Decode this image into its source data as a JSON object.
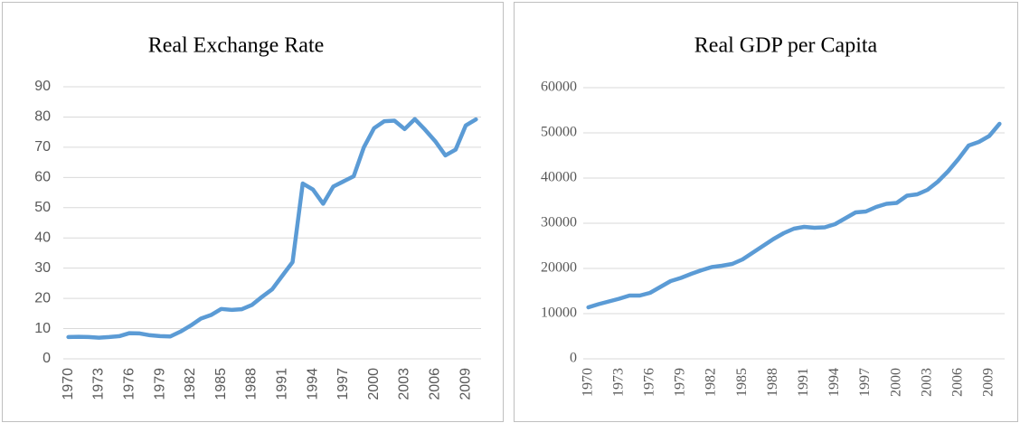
{
  "chart_data": [
    {
      "type": "line",
      "title": "Real Exchange Rate",
      "categories": [
        "1970",
        null,
        null,
        "1973",
        null,
        null,
        "1976",
        null,
        null,
        "1979",
        null,
        null,
        "1982",
        null,
        null,
        "1985",
        null,
        null,
        "1988",
        null,
        null,
        "1991",
        null,
        null,
        "1994",
        null,
        null,
        "1997",
        null,
        null,
        "2000",
        null,
        null,
        "2003",
        null,
        null,
        "2006",
        null,
        null,
        "2009",
        null
      ],
      "values": [
        7.2,
        7.3,
        7.2,
        7.0,
        7.2,
        7.5,
        8.5,
        8.4,
        7.8,
        7.5,
        7.4,
        9.0,
        11,
        13.3,
        14.5,
        16.5,
        16.2,
        16.4,
        17.8,
        20.5,
        23,
        27.5,
        32,
        58,
        56,
        51.3,
        57,
        58.7,
        60.4,
        70,
        76.3,
        78.6,
        78.8,
        76,
        79.3,
        75.8,
        72,
        67.3,
        69.2,
        77.2,
        79.2
      ],
      "color": "#5b9bd5",
      "ylim": [
        0,
        90
      ],
      "yticks": [
        0,
        10,
        20,
        30,
        40,
        50,
        60,
        70,
        80,
        90
      ],
      "grid": true
    },
    {
      "type": "line",
      "title": "Real GDP per Capita",
      "categories": [
        "1970",
        null,
        null,
        "1973",
        null,
        null,
        "1976",
        null,
        null,
        "1979",
        null,
        null,
        "1982",
        null,
        null,
        "1985",
        null,
        null,
        "1988",
        null,
        null,
        "1991",
        null,
        null,
        "1994",
        null,
        null,
        "1997",
        null,
        null,
        "2000",
        null,
        null,
        "2003",
        null,
        null,
        "2006",
        null,
        null,
        "2009",
        null
      ],
      "values": [
        11400,
        12100,
        12700,
        13300,
        14000,
        14000,
        14600,
        15900,
        17200,
        17900,
        18800,
        19600,
        20300,
        20600,
        21000,
        22000,
        23500,
        25000,
        26500,
        27800,
        28800,
        29200,
        29000,
        29100,
        29800,
        31100,
        32400,
        32600,
        33600,
        34300,
        34500,
        36100,
        36400,
        37400,
        39200,
        41500,
        44200,
        47200,
        48000,
        49300,
        52000
      ],
      "color": "#5b9bd5",
      "ylim": [
        0,
        60000
      ],
      "yticks": [
        0,
        10000,
        20000,
        30000,
        40000,
        50000,
        60000
      ],
      "grid": true
    }
  ]
}
